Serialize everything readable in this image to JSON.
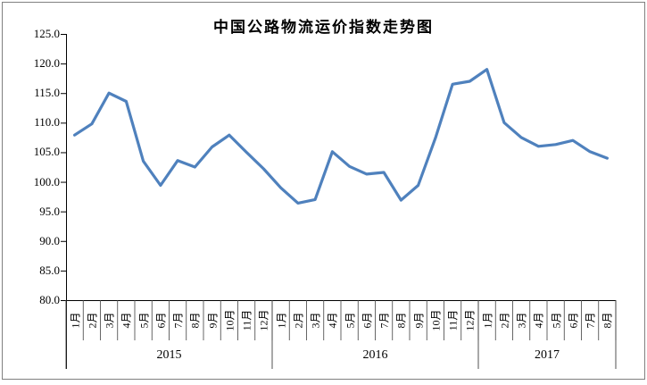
{
  "chart_data": {
    "type": "line",
    "title": "中国公路物流运价指数走势图",
    "xlabel": "",
    "ylabel": "",
    "ylim": [
      80.0,
      125.0
    ],
    "ytick_step": 5.0,
    "ytick_labels": [
      "125.0",
      "120.0",
      "115.0",
      "110.0",
      "105.0",
      "100.0",
      "95.0",
      "90.0",
      "85.0",
      "80.0"
    ],
    "grid": "off",
    "legend": "none",
    "line_color": "#4F81BD",
    "axis_color": "#000000",
    "border_color": "#808080",
    "years": [
      {
        "label": "2015",
        "months": [
          "1月",
          "2月",
          "3月",
          "4月",
          "5月",
          "6月",
          "7月",
          "8月",
          "9月",
          "10月",
          "11月",
          "12月"
        ],
        "values": [
          107.9,
          109.8,
          115.0,
          113.6,
          103.5,
          99.4,
          103.6,
          102.5,
          105.9,
          107.9,
          105.0,
          102.2
        ]
      },
      {
        "label": "2016",
        "months": [
          "1月",
          "2月",
          "3月",
          "4月",
          "5月",
          "6月",
          "7月",
          "8月",
          "9月",
          "10月",
          "11月",
          "12月"
        ],
        "values": [
          99.0,
          96.4,
          97.0,
          105.1,
          102.6,
          101.3,
          101.6,
          96.9,
          99.4,
          107.4,
          116.5,
          117.0
        ]
      },
      {
        "label": "2017",
        "months": [
          "1月",
          "2月",
          "3月",
          "4月",
          "5月",
          "6月",
          "7月",
          "8月"
        ],
        "values": [
          119.0,
          110.0,
          107.5,
          106.0,
          106.3,
          107.0,
          105.1,
          104.0
        ]
      }
    ]
  }
}
